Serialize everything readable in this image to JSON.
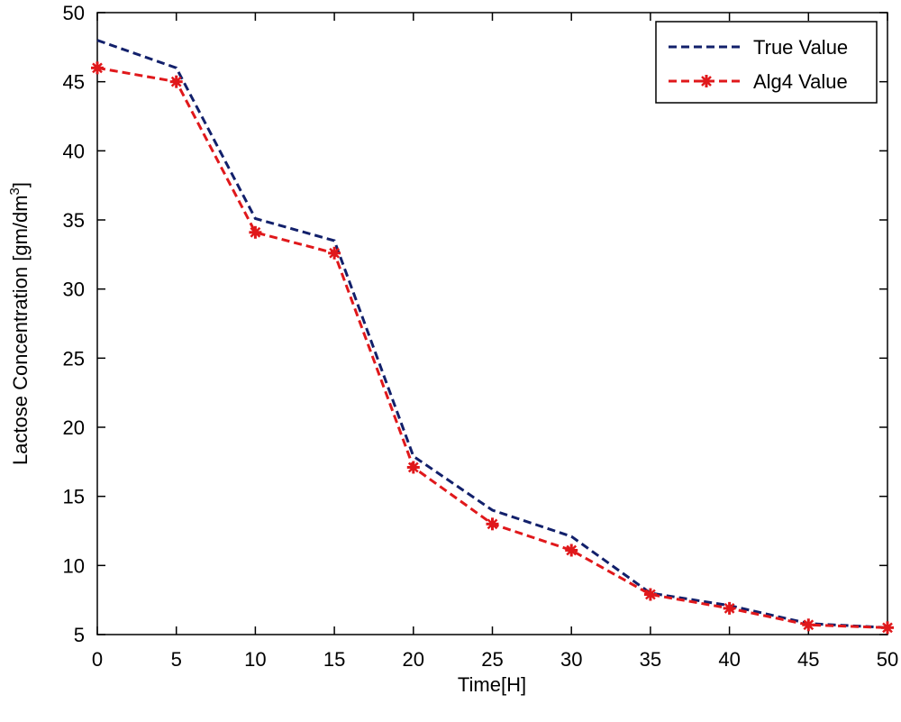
{
  "chart_data": {
    "type": "line",
    "title": "",
    "xlabel": "Time[H]",
    "ylabel_main": "Lactose Concentration [gm/dm",
    "ylabel_sup": "3",
    "ylabel_close": "]",
    "xlim": [
      0,
      50
    ],
    "ylim": [
      5,
      50
    ],
    "xticks": [
      0,
      5,
      10,
      15,
      20,
      25,
      30,
      35,
      40,
      45,
      50
    ],
    "yticks": [
      5,
      10,
      15,
      20,
      25,
      30,
      35,
      40,
      45,
      50
    ],
    "x": [
      0,
      5,
      10,
      15,
      20,
      25,
      30,
      35,
      40,
      45,
      50
    ],
    "grid": false,
    "legend_position": "top-right",
    "series": [
      {
        "name": "True Value",
        "values": [
          48.0,
          46.0,
          35.1,
          33.5,
          17.9,
          14.0,
          12.1,
          8.0,
          7.1,
          5.8,
          5.5
        ],
        "color": "#12206b",
        "line_style": "dashed",
        "marker": "none"
      },
      {
        "name": "Alg4 Value",
        "values": [
          46.0,
          45.0,
          34.1,
          32.6,
          17.1,
          13.0,
          11.1,
          7.9,
          6.9,
          5.7,
          5.5
        ],
        "color": "#e0181b",
        "line_style": "dashed",
        "marker": "star"
      }
    ]
  }
}
